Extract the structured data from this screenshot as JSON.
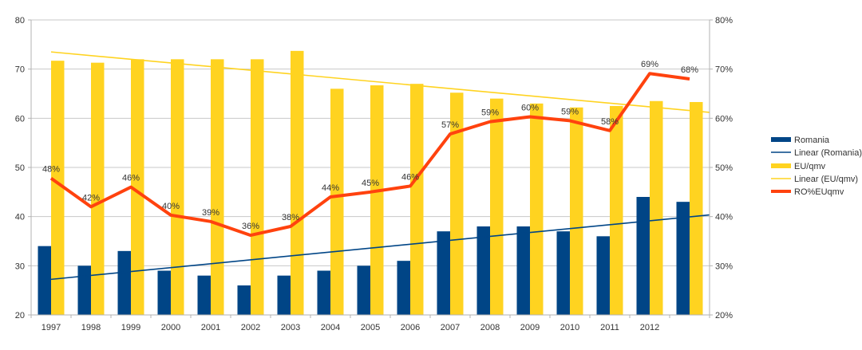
{
  "chart_data": {
    "type": "bar",
    "title": "",
    "xlabel": "",
    "ylabel": "",
    "categories": [
      "1997",
      "1998",
      "1999",
      "2000",
      "2001",
      "2002",
      "2003",
      "2004",
      "2005",
      "2006",
      "2007",
      "2008",
      "2009",
      "2010",
      "2011",
      "2012",
      ""
    ],
    "ylim": [
      20,
      80
    ],
    "y_ticks": [
      "20",
      "30",
      "40",
      "50",
      "60",
      "70",
      "80"
    ],
    "y2lim": [
      20,
      80
    ],
    "y2_ticks": [
      "20%",
      "30%",
      "40%",
      "50%",
      "60%",
      "70%",
      "80%"
    ],
    "grid": true,
    "legend_position": "right",
    "series": [
      {
        "name": "Romania",
        "type": "bar",
        "axis": "left",
        "color": "#004586",
        "values": [
          34,
          30,
          33,
          29,
          28,
          26,
          28,
          29,
          30,
          31,
          37,
          38,
          38,
          37,
          36,
          44,
          43
        ]
      },
      {
        "name": "Linear (Romania)",
        "type": "trendline",
        "of": 0,
        "color": "#004586"
      },
      {
        "name": "EU/qmv",
        "type": "bar",
        "axis": "left",
        "color": "#ffd320",
        "values": [
          71.7,
          71.3,
          72,
          72,
          72,
          72,
          73.7,
          66,
          66.7,
          67,
          65.2,
          64,
          63,
          62.2,
          62.5,
          63.5,
          63.3
        ]
      },
      {
        "name": "Linear (EU/qmv)",
        "type": "trendline",
        "of": 2,
        "color": "#ffd320"
      },
      {
        "name": "RO%EUqmv",
        "type": "line",
        "axis": "right",
        "color": "#ff420e",
        "values": [
          47.8,
          42,
          46,
          40.3,
          39,
          36.2,
          38,
          44,
          45,
          46.2,
          56.8,
          59.3,
          60.3,
          59.5,
          57.5,
          69.1,
          68
        ],
        "labels": [
          "48%",
          "42%",
          "46%",
          "40%",
          "39%",
          "36%",
          "38%",
          "44%",
          "45%",
          "46%",
          "57%",
          "59%",
          "60%",
          "59%",
          "58%",
          "69%",
          "68%"
        ]
      }
    ]
  }
}
